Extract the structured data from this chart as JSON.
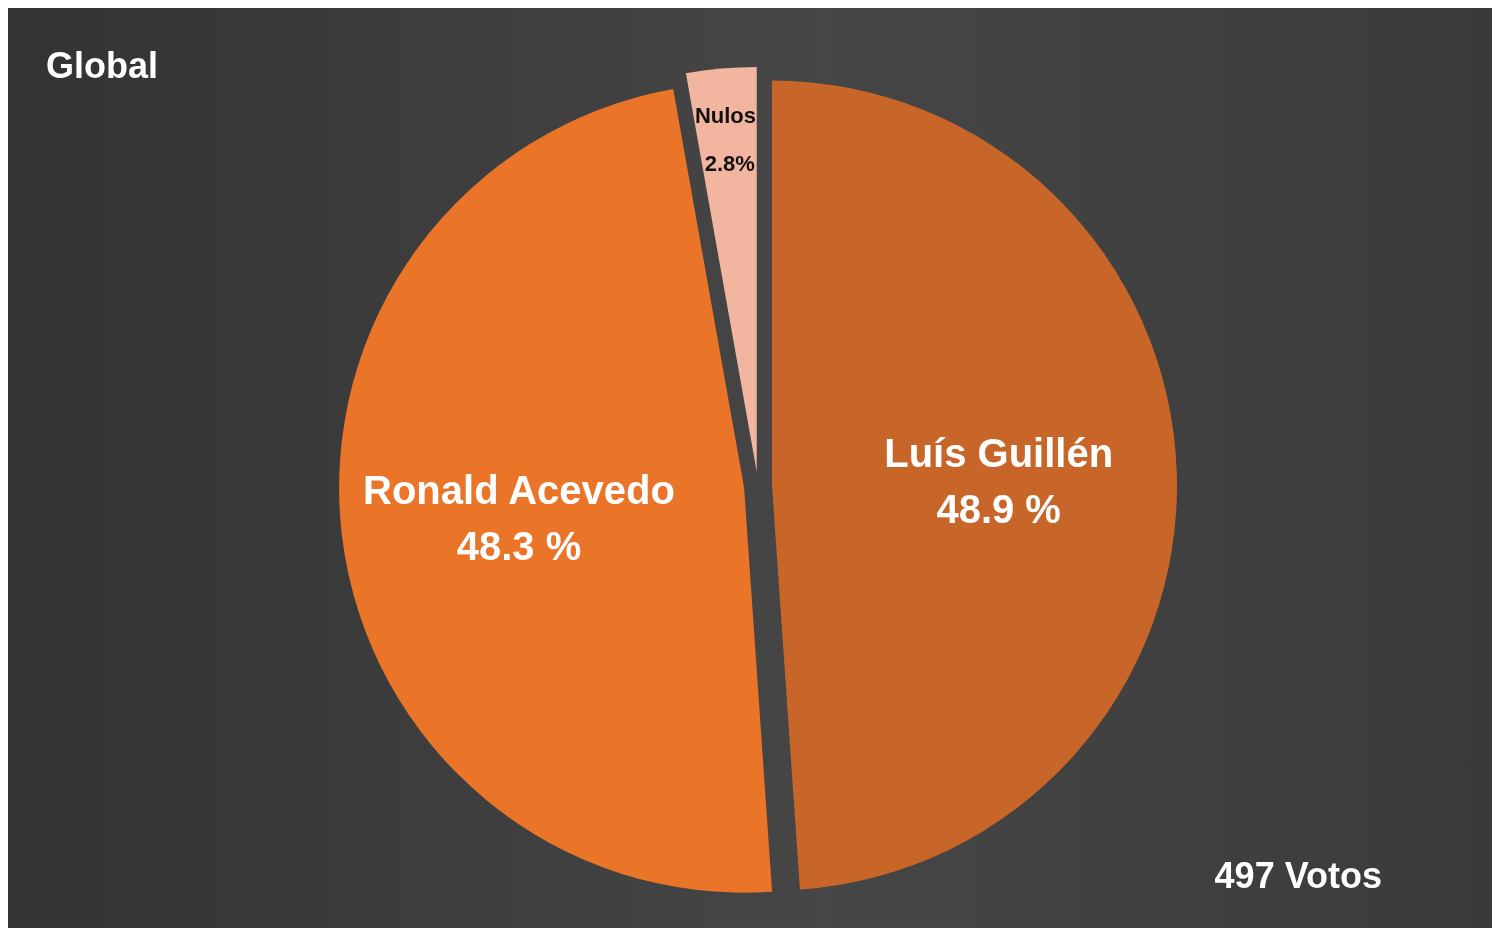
{
  "chart_data": {
    "type": "pie",
    "title": "Global",
    "categories": [
      "Luís Guillén",
      "Ronald Acevedo",
      "Nulos"
    ],
    "values": [
      48.9,
      48.3,
      2.8
    ],
    "colors": [
      "#c8662a",
      "#ea7428",
      "#f2b6a0"
    ],
    "value_labels": [
      "48.9 %",
      "48.3 %",
      "2.8%"
    ],
    "annotations": [
      "497 Votos"
    ]
  }
}
